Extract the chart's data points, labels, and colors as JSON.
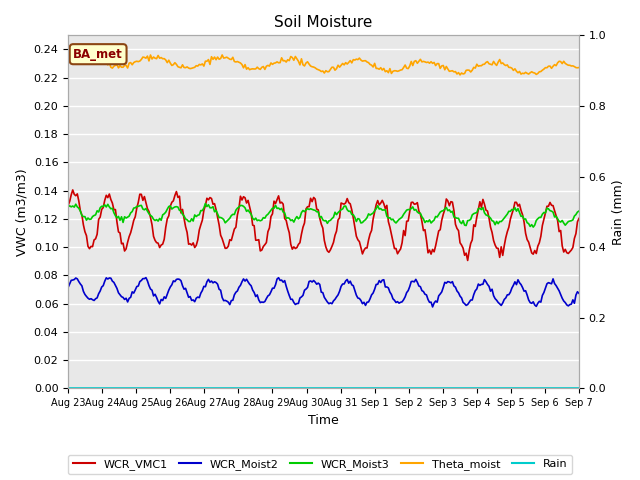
{
  "title": "Soil Moisture",
  "xlabel": "Time",
  "ylabel_left": "VWC (m3/m3)",
  "ylabel_right": "Rain (mm)",
  "ylim_left": [
    0.0,
    0.25
  ],
  "ylim_right": [
    0.0,
    1.0
  ],
  "figure_facecolor": "#ffffff",
  "plot_bg_color": "#e8e8e8",
  "annotation_text": "BA_met",
  "legend_entries": [
    "WCR_VMC1",
    "WCR_Moist2",
    "WCR_Moist3",
    "Theta_moist",
    "Rain"
  ],
  "line_colors": [
    "#cc0000",
    "#0000cc",
    "#00cc00",
    "#ffa500",
    "#00cccc"
  ],
  "line_widths": [
    1.2,
    1.2,
    1.2,
    1.2,
    1.2
  ],
  "xtick_labels": [
    "Aug 23",
    "Aug 24",
    "Aug 25",
    "Aug 26",
    "Aug 27",
    "Aug 28",
    "Aug 29",
    "Aug 30",
    "Aug 31",
    "Sep 1",
    "Sep 2",
    "Sep 3",
    "Sep 4",
    "Sep 5",
    "Sep 6",
    "Sep 7"
  ],
  "num_points": 336,
  "duration_days": 15
}
